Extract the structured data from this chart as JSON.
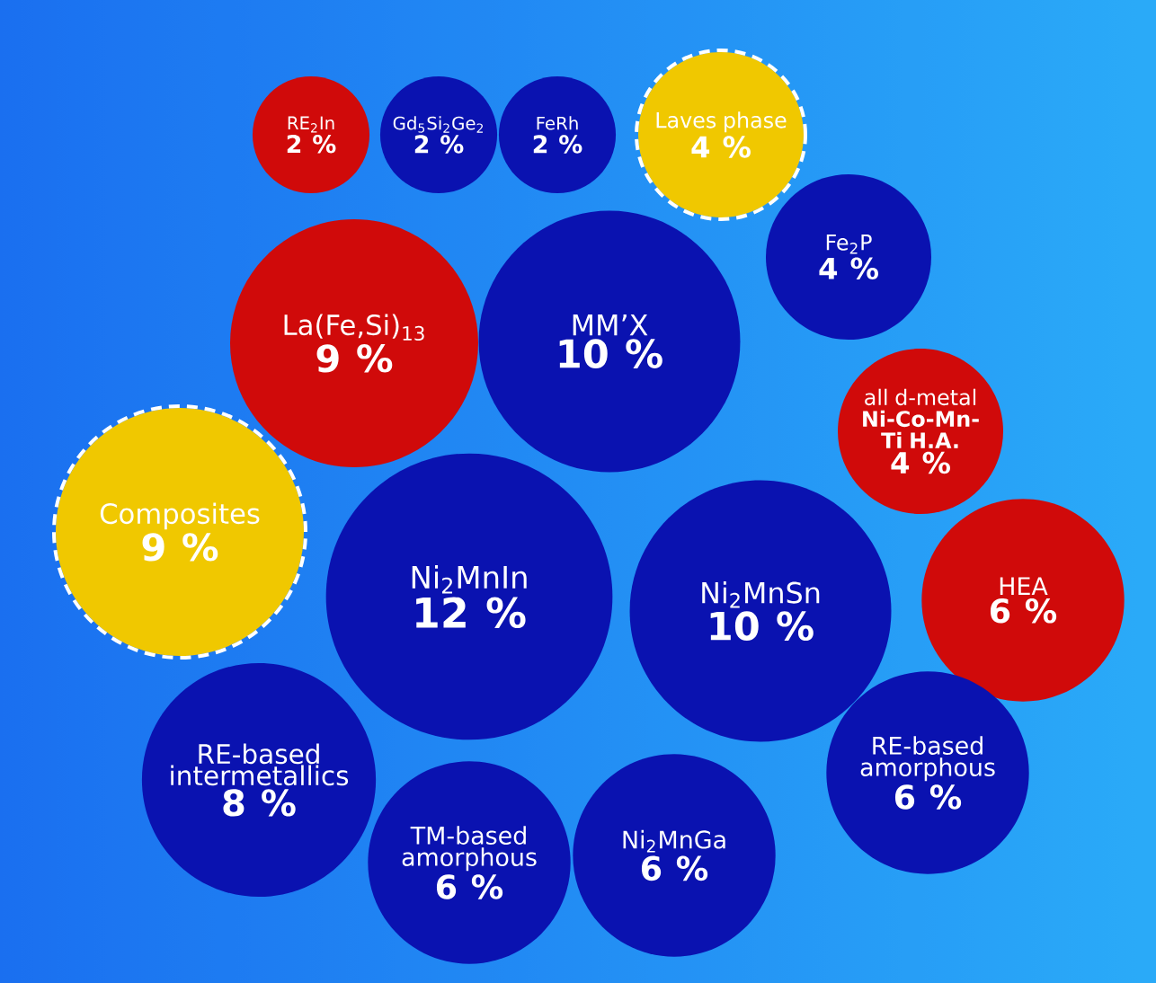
{
  "chart_data": {
    "type": "other",
    "categories": [
      "RE$_{2}$In",
      "Gd$_{5}$Si$_{2}$Ge$_{2}$",
      "FeRh",
      "Laves phase",
      "Fe$_{2}$P",
      "La(Fe,Si)$_{13}$",
      "MM’X",
      "all d-metal **Ni-Co-Mn-Ti H.A.**",
      "Composites",
      "Ni$_{2}$MnIn",
      "Ni$_{2}$MnSn",
      "HEA",
      "RE-based intermetallics",
      "TM-based amorphous",
      "Ni$_{2}$MnGa",
      "RE-based amorphous"
    ],
    "values": [
      2,
      2,
      2,
      4,
      4,
      9,
      10,
      4,
      9,
      12,
      10,
      6,
      8,
      6,
      6,
      6
    ],
    "value_labels": [
      "2 %",
      "2 %",
      "2 %",
      "4 %",
      "4 %",
      "9 %",
      "10 %",
      "4 %",
      "9 %",
      "12 %",
      "10 %",
      "6 %",
      "8 %",
      "6 %",
      "6 %",
      "6 %"
    ],
    "colors": [
      "#d00a0a",
      "#0a12b0",
      "#0a12b0",
      "#f0c800",
      "#0a12b0",
      "#d00a0a",
      "#0a12b0",
      "#d00a0a",
      "#f0c800",
      "#0a12b0",
      "#0a12b0",
      "#d00a0a",
      "#0a12b0",
      "#0a12b0",
      "#0a12b0",
      "#0a12b0"
    ]
  }
}
